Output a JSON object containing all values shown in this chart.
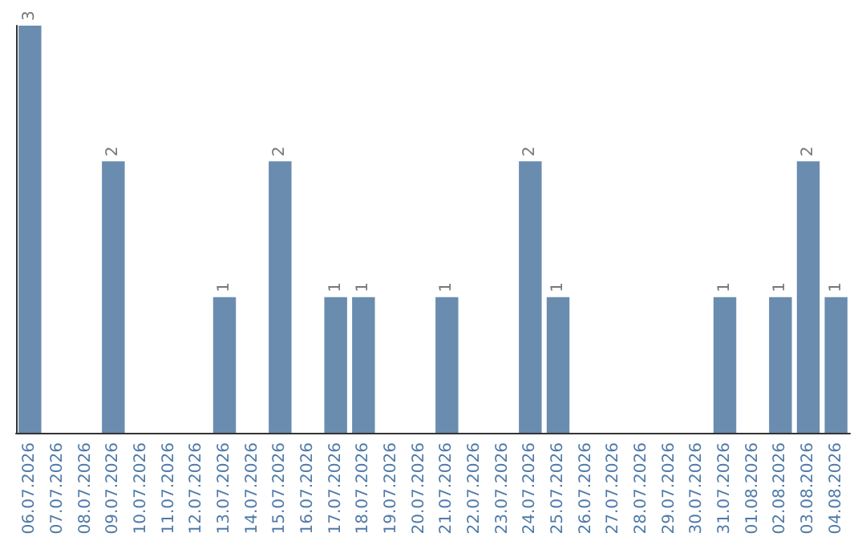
{
  "chart_data": {
    "type": "bar",
    "categories": [
      "06.07.2026",
      "07.07.2026",
      "08.07.2026",
      "09.07.2026",
      "10.07.2026",
      "11.07.2026",
      "12.07.2026",
      "13.07.2026",
      "14.07.2026",
      "15.07.2026",
      "16.07.2026",
      "17.07.2026",
      "18.07.2026",
      "19.07.2026",
      "20.07.2026",
      "21.07.2026",
      "22.07.2026",
      "23.07.2026",
      "24.07.2026",
      "25.07.2026",
      "26.07.2026",
      "27.07.2026",
      "28.07.2026",
      "29.07.2026",
      "30.07.2026",
      "31.07.2026",
      "01.08.2026",
      "02.08.2026",
      "03.08.2026",
      "04.08.2026"
    ],
    "values": [
      3,
      0,
      0,
      2,
      0,
      0,
      0,
      1,
      0,
      2,
      0,
      1,
      1,
      0,
      0,
      1,
      0,
      0,
      2,
      1,
      0,
      0,
      0,
      0,
      0,
      1,
      0,
      1,
      2,
      1
    ],
    "value_labels": [
      "3",
      null,
      null,
      "2",
      null,
      null,
      null,
      "1",
      null,
      "2",
      null,
      "1",
      "1",
      null,
      null,
      "1",
      null,
      null,
      "2",
      "1",
      null,
      null,
      null,
      null,
      null,
      "1",
      null,
      "1",
      "2",
      "1"
    ],
    "color": "#6a8caf"
  }
}
